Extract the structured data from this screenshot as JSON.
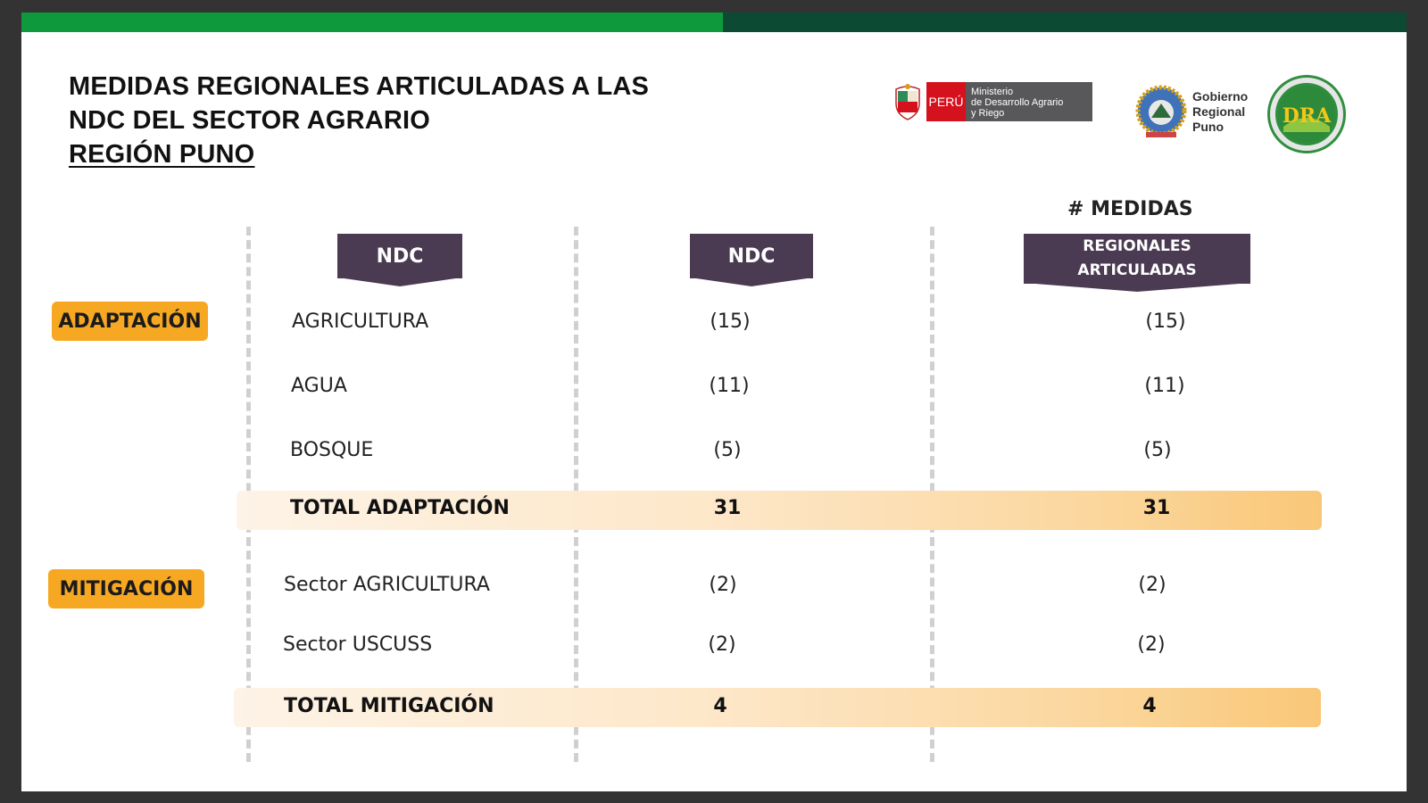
{
  "title": {
    "line1": "MEDIDAS REGIONALES ARTICULADAS A LAS",
    "line2": "NDC DEL SECTOR AGRARIO",
    "line3": "REGIÓN PUNO"
  },
  "logos": {
    "peru": "PERÚ",
    "ministerio_lines": [
      "Ministerio",
      "de Desarrollo Agrario",
      "y Riego"
    ],
    "gobierno_lines": [
      "Gobierno",
      "Regional",
      "Puno"
    ],
    "dra": "DRA"
  },
  "headers": {
    "col1": "NDC",
    "col2": "NDC",
    "col3_top": "# MEDIDAS",
    "col3_line1": "REGIONALES",
    "col3_line2": "ARTICULADAS"
  },
  "sections": {
    "adaptacion": {
      "label": "ADAPTACIÓN",
      "rows": [
        {
          "name": "AGRICULTURA",
          "ndc": "(15)",
          "medidas": "(15)"
        },
        {
          "name": "AGUA",
          "ndc": "(11)",
          "medidas": "(11)"
        },
        {
          "name": "BOSQUE",
          "ndc": "(5)",
          "medidas": "(5)"
        }
      ],
      "total": {
        "name": "TOTAL ADAPTACIÓN",
        "ndc": "31",
        "medidas": "31"
      }
    },
    "mitigacion": {
      "label": "MITIGACIÓN",
      "rows": [
        {
          "name": "Sector AGRICULTURA",
          "ndc": "(2)",
          "medidas": "(2)"
        },
        {
          "name": "Sector USCUSS",
          "ndc": "(2)",
          "medidas": "(2)"
        }
      ],
      "total": {
        "name": "TOTAL MITIGACIÓN",
        "ndc": "4",
        "medidas": "4"
      }
    }
  },
  "colors": {
    "topbar_green": "#0e9a3c",
    "topbar_dark": "#0d4a33",
    "header_purple": "#4b3b52",
    "badge_orange": "#f7a823"
  }
}
